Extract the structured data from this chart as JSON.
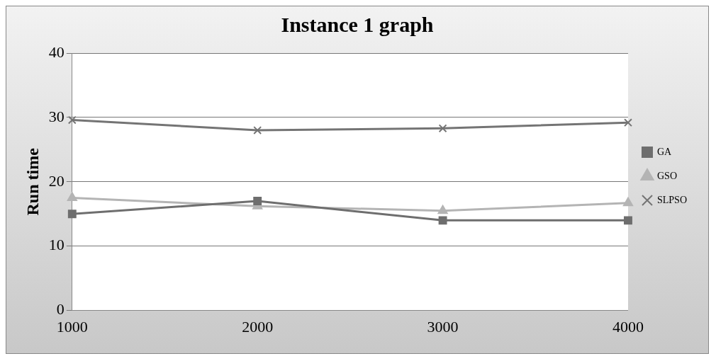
{
  "chart_data": {
    "type": "line",
    "title": "Instance 1 graph",
    "ylabel": "Run time",
    "categories": [
      "1000",
      "2000",
      "3000",
      "4000"
    ],
    "series": [
      {
        "name": "GA",
        "color": "#6e6e6e",
        "values": [
          15,
          17,
          14,
          14
        ],
        "marker": "square"
      },
      {
        "name": "GSO",
        "color": "#b4b4b4",
        "values": [
          17.5,
          16.2,
          15.5,
          16.7
        ],
        "marker": "triangle"
      },
      {
        "name": "SLPSO",
        "color": "#747474",
        "values": [
          29.6,
          28,
          28.3,
          29.2
        ],
        "marker": "cross"
      }
    ],
    "ylim": [
      0,
      40
    ],
    "yticks": [
      0,
      10,
      20,
      30,
      40
    ],
    "grid": "y",
    "legend": "right"
  }
}
